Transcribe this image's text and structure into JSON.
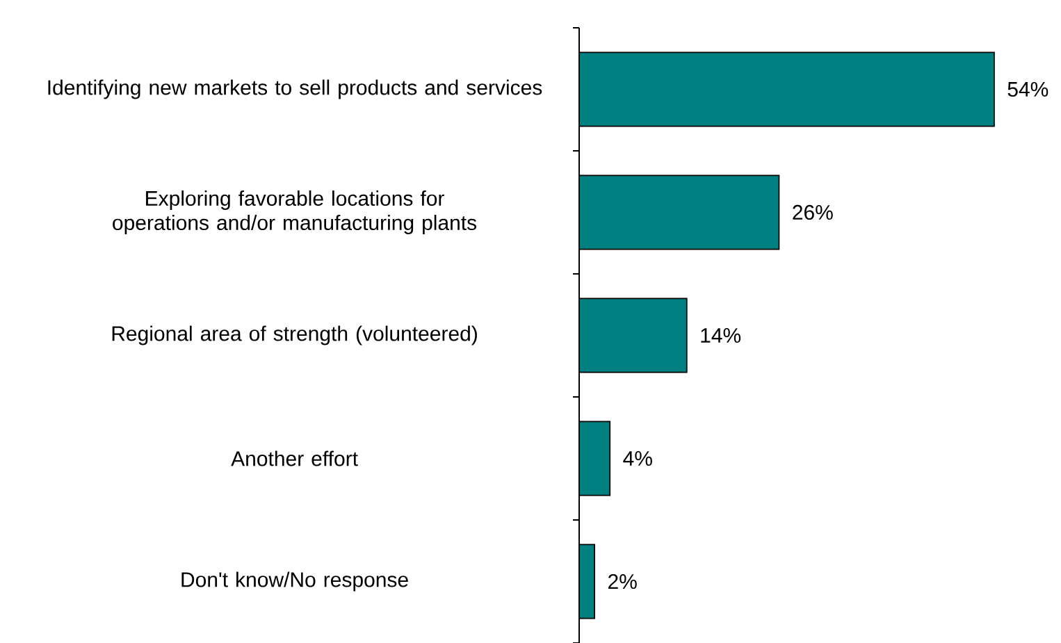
{
  "chart_data": {
    "type": "bar",
    "orientation": "horizontal",
    "categories": [
      "Identifying new markets to sell products and services",
      "Exploring favorable locations for operations and/or manufacturing plants",
      "Regional area of strength (volunteered)",
      "Another effort",
      "Don't know/No response"
    ],
    "values": [
      54,
      26,
      14,
      4,
      2
    ],
    "value_labels": [
      "54%",
      "26%",
      "14%",
      "4%",
      "2%"
    ],
    "color": "#008080"
  }
}
